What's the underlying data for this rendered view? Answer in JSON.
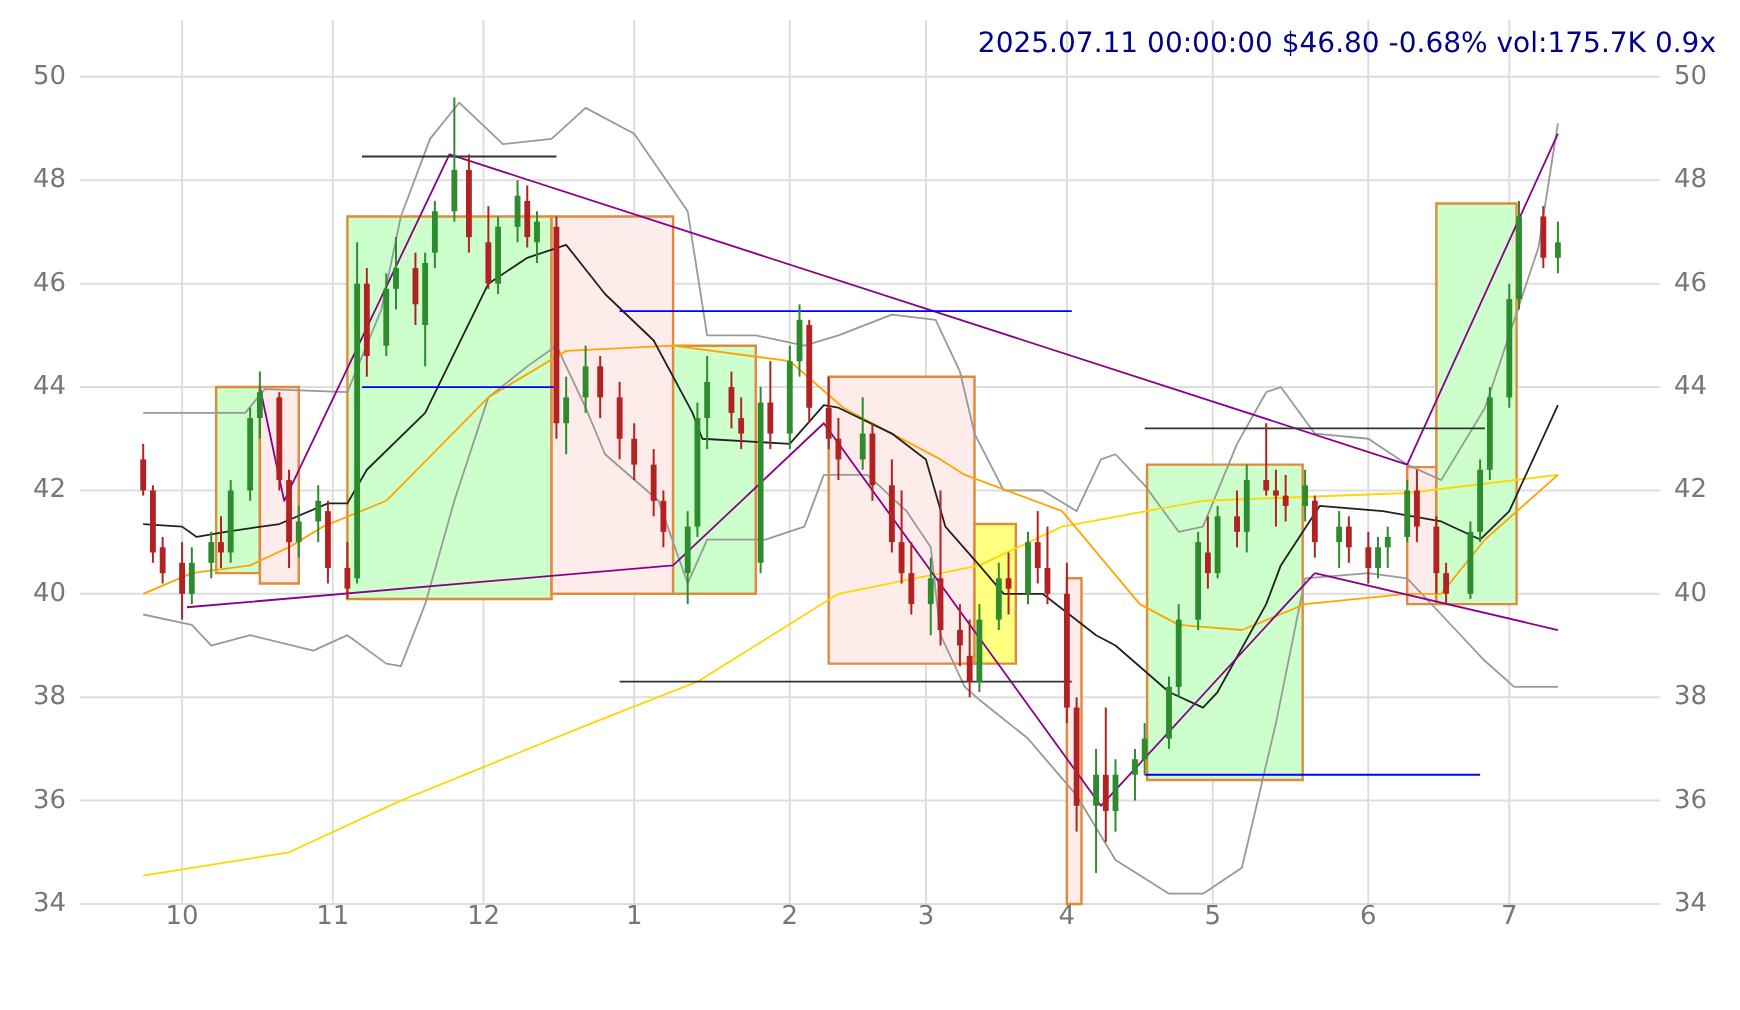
{
  "chart_data": {
    "type": "candlestick",
    "title": "2025.07.11 00:00:00 $46.80 -0.68% vol:175.7K 0.9x",
    "xlim": [
      "2024-09-10",
      "2025-08-01"
    ],
    "xticks": [
      {
        "value": "2024-10-01",
        "label": "10"
      },
      {
        "value": "2024-11-01",
        "label": "11"
      },
      {
        "value": "2024-12-02",
        "label": "12"
      },
      {
        "value": "2025-01-02",
        "label": "1"
      },
      {
        "value": "2025-02-03",
        "label": "2"
      },
      {
        "value": "2025-03-03",
        "label": "3"
      },
      {
        "value": "2025-04-01",
        "label": "4"
      },
      {
        "value": "2025-05-01",
        "label": "5"
      },
      {
        "value": "2025-06-02",
        "label": "6"
      },
      {
        "value": "2025-07-01",
        "label": "7"
      }
    ],
    "ylim": [
      34,
      51.1
    ],
    "yticks": [
      34,
      36,
      38,
      40,
      42,
      44,
      46,
      48,
      50
    ],
    "y2lim": [
      34,
      51.1
    ],
    "y2ticks": [
      34,
      36,
      38,
      40,
      42,
      44,
      46,
      48,
      50
    ],
    "grid": true,
    "x": [
      "2024-09-23",
      "2024-09-25",
      "2024-09-27",
      "2024-10-01",
      "2024-10-03",
      "2024-10-07",
      "2024-10-09",
      "2024-10-11",
      "2024-10-15",
      "2024-10-17",
      "2024-10-21",
      "2024-10-23",
      "2024-10-25",
      "2024-10-29",
      "2024-10-31",
      "2024-11-04",
      "2024-11-06",
      "2024-11-08",
      "2024-11-12",
      "2024-11-14",
      "2024-11-18",
      "2024-11-20",
      "2024-11-22",
      "2024-11-26",
      "2024-11-29",
      "2024-12-03",
      "2024-12-05",
      "2024-12-09",
      "2024-12-11",
      "2024-12-13",
      "2024-12-17",
      "2024-12-19",
      "2024-12-23",
      "2024-12-26",
      "2024-12-30",
      "2025-01-02",
      "2025-01-06",
      "2025-01-08",
      "2025-01-13",
      "2025-01-15",
      "2025-01-17",
      "2025-01-22",
      "2025-01-24",
      "2025-01-28",
      "2025-01-30",
      "2025-02-03",
      "2025-02-05",
      "2025-02-07",
      "2025-02-11",
      "2025-02-13",
      "2025-02-18",
      "2025-02-20",
      "2025-02-24",
      "2025-02-26",
      "2025-02-28",
      "2025-03-04",
      "2025-03-06",
      "2025-03-10",
      "2025-03-12",
      "2025-03-14",
      "2025-03-18",
      "2025-03-20",
      "2025-03-24",
      "2025-03-26",
      "2025-03-28",
      "2025-04-01",
      "2025-04-03",
      "2025-04-07",
      "2025-04-09",
      "2025-04-11",
      "2025-04-15",
      "2025-04-17",
      "2025-04-22",
      "2025-04-24",
      "2025-04-28",
      "2025-04-30",
      "2025-05-02",
      "2025-05-06",
      "2025-05-08",
      "2025-05-12",
      "2025-05-14",
      "2025-05-16",
      "2025-05-20",
      "2025-05-22",
      "2025-05-27",
      "2025-05-29",
      "2025-06-02",
      "2025-06-04",
      "2025-06-06",
      "2025-06-10",
      "2025-06-12",
      "2025-06-16",
      "2025-06-18",
      "2025-06-23",
      "2025-06-25",
      "2025-06-27",
      "2025-07-01",
      "2025-07-03",
      "2025-07-08",
      "2025-07-11"
    ],
    "ohlc": [
      [
        42.6,
        42.9,
        41.9,
        42.0
      ],
      [
        42.0,
        42.1,
        40.6,
        40.8
      ],
      [
        40.9,
        41.1,
        40.2,
        40.4
      ],
      [
        40.6,
        41.0,
        39.5,
        40.0
      ],
      [
        40.0,
        40.9,
        39.8,
        40.6
      ],
      [
        40.6,
        41.2,
        40.3,
        41.0
      ],
      [
        41.0,
        41.5,
        40.5,
        40.8
      ],
      [
        40.8,
        42.2,
        40.6,
        42.0
      ],
      [
        42.0,
        43.6,
        41.8,
        43.4
      ],
      [
        43.4,
        44.3,
        43.0,
        43.9
      ],
      [
        43.8,
        43.9,
        42.0,
        42.2
      ],
      [
        42.2,
        42.4,
        40.5,
        41.0
      ],
      [
        41.0,
        41.7,
        40.7,
        41.4
      ],
      [
        41.4,
        42.1,
        41.0,
        41.8
      ],
      [
        41.6,
        41.8,
        40.2,
        40.5
      ],
      [
        40.5,
        41.0,
        39.9,
        40.1
      ],
      [
        40.3,
        46.8,
        40.2,
        46.0
      ],
      [
        46.0,
        46.3,
        44.2,
        44.6
      ],
      [
        44.8,
        46.2,
        44.6,
        45.9
      ],
      [
        45.9,
        46.9,
        45.5,
        46.3
      ],
      [
        46.3,
        46.6,
        45.2,
        45.6
      ],
      [
        45.2,
        46.6,
        44.4,
        46.4
      ],
      [
        46.6,
        47.6,
        46.3,
        47.4
      ],
      [
        47.4,
        49.6,
        47.2,
        48.2
      ],
      [
        48.2,
        48.5,
        46.6,
        46.9
      ],
      [
        46.8,
        47.5,
        45.9,
        46.0
      ],
      [
        46.0,
        47.3,
        45.8,
        47.1
      ],
      [
        47.1,
        48.0,
        46.8,
        47.7
      ],
      [
        47.6,
        47.9,
        46.7,
        46.9
      ],
      [
        46.8,
        47.4,
        46.4,
        47.2
      ],
      [
        47.1,
        47.3,
        43.0,
        43.3
      ],
      [
        43.3,
        44.2,
        42.7,
        43.8
      ],
      [
        43.8,
        44.8,
        43.5,
        44.4
      ],
      [
        44.4,
        44.6,
        43.4,
        43.8
      ],
      [
        43.8,
        44.1,
        42.6,
        43.0
      ],
      [
        43.0,
        43.3,
        42.2,
        42.5
      ],
      [
        42.5,
        42.8,
        41.5,
        41.8
      ],
      [
        41.8,
        42.0,
        40.9,
        41.2
      ],
      [
        40.4,
        41.6,
        39.8,
        41.3
      ],
      [
        41.3,
        43.7,
        41.1,
        43.4
      ],
      [
        43.4,
        44.6,
        42.8,
        44.1
      ],
      [
        44.0,
        44.3,
        43.2,
        43.5
      ],
      [
        43.4,
        43.8,
        42.8,
        43.1
      ],
      [
        40.6,
        44.0,
        40.4,
        43.7
      ],
      [
        43.7,
        44.5,
        42.8,
        43.1
      ],
      [
        43.1,
        44.8,
        42.8,
        44.5
      ],
      [
        44.5,
        45.6,
        44.2,
        45.3
      ],
      [
        45.2,
        45.3,
        43.3,
        43.6
      ],
      [
        43.6,
        44.2,
        42.8,
        43.0
      ],
      [
        43.0,
        43.4,
        42.2,
        42.6
      ],
      [
        42.6,
        43.8,
        42.4,
        43.1
      ],
      [
        43.1,
        43.3,
        41.8,
        42.1
      ],
      [
        42.1,
        42.6,
        40.8,
        41.0
      ],
      [
        41.0,
        42.0,
        40.2,
        40.4
      ],
      [
        40.4,
        41.0,
        39.6,
        39.8
      ],
      [
        39.8,
        40.7,
        39.2,
        40.3
      ],
      [
        40.3,
        42.0,
        39.0,
        39.3
      ],
      [
        39.3,
        39.8,
        38.6,
        39.0
      ],
      [
        38.8,
        39.5,
        38.0,
        38.3
      ],
      [
        38.3,
        39.8,
        38.1,
        39.5
      ],
      [
        39.5,
        40.6,
        39.3,
        40.3
      ],
      [
        40.3,
        40.8,
        39.6,
        40.1
      ],
      [
        40.0,
        41.2,
        39.8,
        41.0
      ],
      [
        41.0,
        41.6,
        40.2,
        40.5
      ],
      [
        40.5,
        41.3,
        39.8,
        40.0
      ],
      [
        40.0,
        40.6,
        37.5,
        37.8
      ],
      [
        37.8,
        38.0,
        35.4,
        35.9
      ],
      [
        35.9,
        37.0,
        34.6,
        36.5
      ],
      [
        36.5,
        37.8,
        35.2,
        35.8
      ],
      [
        35.8,
        36.8,
        35.4,
        36.5
      ],
      [
        36.5,
        37.0,
        36.0,
        36.8
      ],
      [
        36.8,
        37.5,
        36.5,
        37.2
      ],
      [
        37.2,
        38.4,
        37.0,
        38.2
      ],
      [
        38.2,
        39.8,
        38.0,
        39.5
      ],
      [
        39.5,
        41.2,
        39.3,
        41.0
      ],
      [
        40.8,
        41.5,
        40.1,
        40.4
      ],
      [
        40.4,
        41.7,
        40.3,
        41.5
      ],
      [
        41.5,
        42.0,
        40.9,
        41.2
      ],
      [
        41.2,
        42.5,
        40.8,
        42.2
      ],
      [
        42.2,
        43.3,
        41.9,
        42.0
      ],
      [
        42.0,
        42.4,
        41.3,
        41.9
      ],
      [
        41.9,
        42.3,
        41.4,
        41.7
      ],
      [
        41.7,
        42.4,
        41.4,
        42.1
      ],
      [
        41.8,
        41.9,
        40.7,
        41.0
      ],
      [
        41.0,
        41.6,
        40.5,
        41.3
      ],
      [
        41.3,
        41.5,
        40.6,
        40.9
      ],
      [
        40.9,
        41.2,
        40.2,
        40.5
      ],
      [
        40.5,
        41.1,
        40.3,
        40.9
      ],
      [
        40.9,
        41.3,
        40.5,
        41.1
      ],
      [
        41.1,
        42.2,
        41.0,
        42.0
      ],
      [
        42.0,
        42.4,
        41.0,
        41.3
      ],
      [
        41.3,
        41.5,
        40.0,
        40.4
      ],
      [
        40.4,
        40.6,
        39.8,
        40.0
      ],
      [
        40.0,
        41.4,
        39.9,
        41.2
      ],
      [
        41.2,
        42.6,
        41.0,
        42.4
      ],
      [
        42.4,
        44.0,
        42.2,
        43.8
      ],
      [
        43.8,
        46.0,
        43.6,
        45.7
      ],
      [
        45.7,
        47.6,
        45.5,
        47.3
      ],
      [
        47.3,
        47.5,
        46.3,
        46.5
      ],
      [
        46.5,
        47.2,
        46.2,
        46.8
      ]
    ],
    "series": [
      {
        "type": "area",
        "x": [
          "2024-10-08",
          "2024-10-08",
          "2024-10-17",
          "2024-10-17",
          "2024-10-08"
        ],
        "values": [
          40.4,
          44.0,
          44.0,
          40.4,
          40.4
        ],
        "color": "#ccffcc"
      },
      {
        "type": "area",
        "x": [
          "2024-10-17",
          "2024-10-17",
          "2024-10-25",
          "2024-10-25",
          "2024-10-17"
        ],
        "values": [
          40.2,
          44.0,
          44.0,
          40.2,
          40.2
        ],
        "color": "#fdecea"
      },
      {
        "type": "area",
        "x": [
          "2024-11-04",
          "2024-11-04",
          "2024-12-16",
          "2024-12-16",
          "2024-11-04"
        ],
        "values": [
          39.9,
          47.3,
          47.3,
          39.9,
          39.9
        ],
        "color": "#ccffcc"
      },
      {
        "type": "area",
        "x": [
          "2024-12-16",
          "2024-12-16",
          "2025-01-10",
          "2025-01-10",
          "2024-12-16"
        ],
        "values": [
          40.0,
          47.3,
          47.3,
          40.0,
          40.0
        ],
        "color": "#fdecea"
      },
      {
        "type": "area",
        "x": [
          "2025-01-10",
          "2025-01-10",
          "2025-01-27",
          "2025-01-27",
          "2025-01-10"
        ],
        "values": [
          40.0,
          44.8,
          44.8,
          40.0,
          40.0
        ],
        "color": "#ccffcc"
      },
      {
        "type": "area",
        "x": [
          "2025-02-11",
          "2025-02-11",
          "2025-03-13",
          "2025-03-13",
          "2025-02-11"
        ],
        "values": [
          38.65,
          44.2,
          44.2,
          38.65,
          38.65
        ],
        "color": "#fdecea"
      },
      {
        "type": "area",
        "x": [
          "2025-03-13",
          "2025-03-13",
          "2025-03-21T12:00",
          "2025-03-21T12:00",
          "2025-03-13"
        ],
        "values": [
          38.65,
          41.35,
          41.35,
          38.65,
          38.65
        ],
        "color": "#ffff80"
      },
      {
        "type": "area",
        "x": [
          "2025-04-01",
          "2025-04-01",
          "2025-04-04",
          "2025-04-04",
          "2025-04-01"
        ],
        "values": [
          34.0,
          40.3,
          40.3,
          34.0,
          34.0
        ],
        "color": "#fdecea"
      },
      {
        "type": "area",
        "x": [
          "2025-04-17T12:00",
          "2025-04-17T12:00",
          "2025-05-19T12:00",
          "2025-05-19T12:00",
          "2025-04-17T12:00"
        ],
        "values": [
          36.4,
          42.5,
          42.5,
          36.4,
          36.4
        ],
        "color": "#ccffcc"
      },
      {
        "type": "area",
        "x": [
          "2025-06-10",
          "2025-06-10",
          "2025-06-16",
          "2025-06-16",
          "2025-06-10"
        ],
        "values": [
          39.8,
          42.45,
          42.45,
          39.8,
          39.8
        ],
        "color": "#fdecea"
      },
      {
        "type": "area",
        "x": [
          "2025-06-16",
          "2025-06-16",
          "2025-07-02T12:00",
          "2025-07-02T12:00",
          "2025-06-16"
        ],
        "values": [
          39.8,
          47.55,
          47.55,
          39.8,
          39.8
        ],
        "color": "#ccffcc"
      },
      {
        "type": "line",
        "x": [
          "2024-09-23",
          "2024-10-03",
          "2024-10-14",
          "2024-10-18",
          "2024-11-04",
          "2024-11-11",
          "2024-11-15",
          "2024-11-21",
          "2024-11-27",
          "2024-12-06",
          "2024-12-16",
          "2024-12-23",
          "2025-01-02",
          "2025-01-13",
          "2025-01-17",
          "2025-01-27",
          "2025-02-06",
          "2025-02-13",
          "2025-02-24",
          "2025-03-05",
          "2025-03-10",
          "2025-03-13",
          "2025-03-19",
          "2025-03-27",
          "2025-04-03",
          "2025-04-08",
          "2025-04-11",
          "2025-04-17",
          "2025-04-24",
          "2025-04-29",
          "2025-05-06",
          "2025-05-12",
          "2025-05-15",
          "2025-05-22",
          "2025-06-02",
          "2025-06-10",
          "2025-06-17",
          "2025-06-26",
          "2025-07-07",
          "2025-07-11"
        ],
        "values": [
          43.5,
          43.5,
          43.5,
          43.96,
          43.9,
          45.5,
          47.3,
          48.8,
          49.5,
          48.7,
          48.8,
          49.4,
          48.9,
          47.4,
          45.0,
          45.0,
          44.8,
          45.0,
          45.4,
          45.3,
          44.3,
          43.1,
          42.0,
          42.0,
          41.6,
          42.6,
          42.7,
          42.1,
          41.2,
          41.3,
          42.9,
          43.9,
          44.0,
          43.1,
          43.0,
          42.5,
          42.2,
          43.6,
          46.7,
          49.1
        ],
        "color": "#999999"
      },
      {
        "type": "line",
        "x": [
          "2024-09-23",
          "2024-10-03",
          "2024-10-07",
          "2024-10-15",
          "2024-10-28",
          "2024-11-04",
          "2024-11-12",
          "2024-11-15",
          "2024-11-20",
          "2024-11-26",
          "2024-12-03",
          "2024-12-11",
          "2024-12-17",
          "2024-12-23",
          "2024-12-27",
          "2025-01-07",
          "2025-01-13",
          "2025-01-17",
          "2025-01-29",
          "2025-02-06",
          "2025-02-10",
          "2025-02-19",
          "2025-02-27",
          "2025-03-04",
          "2025-03-06",
          "2025-03-11",
          "2025-03-14",
          "2025-03-24",
          "2025-04-03",
          "2025-04-11",
          "2025-04-22",
          "2025-04-29",
          "2025-05-07",
          "2025-05-14",
          "2025-05-20",
          "2025-06-02",
          "2025-06-10",
          "2025-06-17",
          "2025-06-26",
          "2025-07-02",
          "2025-07-11"
        ],
        "values": [
          39.6,
          39.4,
          39.0,
          39.2,
          38.9,
          39.2,
          38.65,
          38.6,
          39.8,
          41.8,
          43.8,
          44.4,
          44.8,
          43.6,
          42.7,
          41.8,
          40.2,
          41.05,
          41.05,
          41.3,
          42.3,
          42.3,
          41.6,
          40.9,
          39.2,
          38.2,
          37.95,
          37.2,
          36.1,
          34.85,
          34.2,
          34.2,
          34.7,
          37.5,
          40.3,
          40.4,
          40.3,
          39.6,
          38.7,
          38.2,
          38.2
        ],
        "color": "#999999"
      },
      {
        "type": "line",
        "x": [
          "2024-09-23",
          "2024-10-23",
          "2024-11-15",
          "2024-12-23",
          "2025-01-15",
          "2025-02-13",
          "2025-03-14",
          "2025-03-31",
          "2025-04-29",
          "2025-06-10",
          "2025-07-11"
        ],
        "values": [
          34.55,
          35.0,
          36.0,
          37.45,
          38.3,
          40.0,
          40.55,
          41.3,
          41.8,
          41.95,
          42.3
        ],
        "color": "#ffd700"
      },
      {
        "type": "line",
        "x": [
          "2024-09-23",
          "2024-10-03",
          "2024-10-15",
          "2024-10-23",
          "2024-10-30",
          "2024-11-12",
          "2024-12-03",
          "2024-12-19",
          "2025-01-10",
          "2025-02-03",
          "2025-02-14",
          "2025-03-06",
          "2025-03-11",
          "2025-03-31",
          "2025-04-16",
          "2025-04-24",
          "2025-05-07",
          "2025-05-20",
          "2025-06-10",
          "2025-06-17",
          "2025-06-26",
          "2025-07-11"
        ],
        "values": [
          40.0,
          40.4,
          40.55,
          40.9,
          41.3,
          41.8,
          43.8,
          44.7,
          44.8,
          44.5,
          43.6,
          42.6,
          42.3,
          41.6,
          39.8,
          39.4,
          39.3,
          39.8,
          40.0,
          40.0,
          41.05,
          42.3
        ],
        "color": "#ffa500"
      },
      {
        "type": "line",
        "x": [
          "2024-09-23",
          "2024-10-01",
          "2024-10-04",
          "2024-10-10",
          "2024-10-21",
          "2024-10-31",
          "2024-11-04",
          "2024-11-08",
          "2024-11-20",
          "2024-12-03",
          "2024-12-11",
          "2024-12-19",
          "2024-12-27",
          "2025-01-06",
          "2025-01-14",
          "2025-01-16",
          "2025-02-03",
          "2025-02-10",
          "2025-02-13",
          "2025-02-24",
          "2025-03-03",
          "2025-03-07",
          "2025-03-14",
          "2025-03-19",
          "2025-03-27",
          "2025-04-07",
          "2025-04-11",
          "2025-04-22",
          "2025-04-29",
          "2025-05-02",
          "2025-05-12",
          "2025-05-15",
          "2025-05-23",
          "2025-06-05",
          "2025-06-17",
          "2025-06-25",
          "2025-07-01",
          "2025-07-11"
        ],
        "values": [
          41.35,
          41.3,
          41.1,
          41.2,
          41.35,
          41.75,
          41.75,
          42.4,
          43.5,
          46.0,
          46.5,
          46.75,
          45.8,
          44.9,
          43.5,
          43.0,
          42.9,
          43.65,
          43.6,
          43.1,
          42.6,
          41.3,
          40.55,
          40.0,
          40.0,
          39.2,
          39.0,
          38.1,
          37.8,
          38.1,
          39.8,
          40.55,
          41.7,
          41.6,
          41.4,
          41.05,
          41.6,
          43.65
        ],
        "color": "#222222"
      },
      {
        "type": "line",
        "x": [
          "2024-10-17",
          "2024-10-22",
          "2024-11-25",
          "2025-06-10",
          "2025-07-11"
        ],
        "values": [
          44.0,
          41.8,
          48.5,
          42.5,
          48.9
        ],
        "color": "#8b008b"
      },
      {
        "type": "line",
        "x": [
          "2024-10-02",
          "2025-01-10",
          "2025-02-10",
          "2025-04-08",
          "2025-05-22"
        ],
        "values": [
          39.74,
          40.55,
          43.3,
          35.9,
          40.4
        ],
        "color": "#8b008b"
      },
      {
        "type": "line",
        "x": [
          "2025-05-22",
          "2025-07-11"
        ],
        "values": [
          40.4,
          39.3
        ],
        "color": "#8b008b"
      },
      {
        "type": "line",
        "x": [
          "2024-11-07",
          "2024-12-17"
        ],
        "values": [
          48.46,
          48.46
        ],
        "color": "#333333"
      },
      {
        "type": "line",
        "x": [
          "2024-11-07",
          "2024-12-17"
        ],
        "values": [
          44.0,
          44.0
        ],
        "color": "#0000ff"
      },
      {
        "type": "line",
        "x": [
          "2024-12-30",
          "2025-04-02"
        ],
        "values": [
          45.47,
          45.47
        ],
        "color": "#0000ff"
      },
      {
        "type": "line",
        "x": [
          "2024-12-30",
          "2025-04-02"
        ],
        "values": [
          38.3,
          38.3
        ],
        "color": "#333333"
      },
      {
        "type": "line",
        "x": [
          "2025-04-17",
          "2025-06-26"
        ],
        "values": [
          43.2,
          43.2
        ],
        "color": "#333333"
      },
      {
        "type": "line",
        "x": [
          "2025-04-17",
          "2025-06-25"
        ],
        "values": [
          36.5,
          36.5
        ],
        "color": "#0000ff"
      }
    ]
  }
}
